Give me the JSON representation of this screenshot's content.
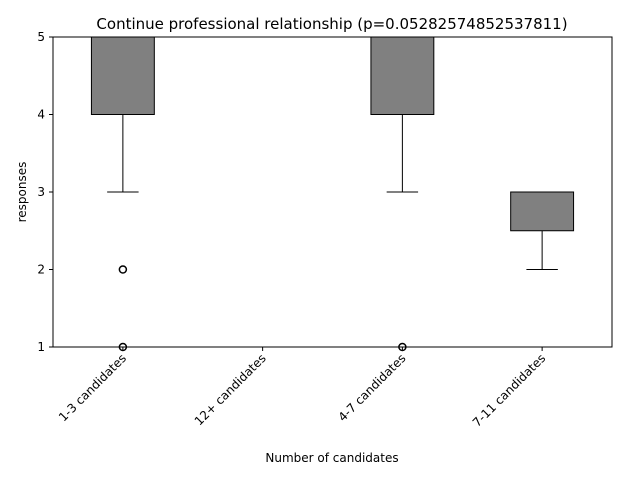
{
  "chart_data": {
    "type": "box",
    "title": "Continue professional relationship (p=0.05282574852537811)",
    "xlabel": "Number of candidates",
    "ylabel": "responses",
    "ylim": [
      1,
      5
    ],
    "yticks": [
      "1",
      "2",
      "3",
      "4",
      "5"
    ],
    "grid": false,
    "colors": {
      "box_fill": "#808080",
      "line": "#000000"
    },
    "categories": [
      "1-3 candidates",
      "12+ candidates",
      "4-7 candidates",
      "7-11 candidates"
    ],
    "boxes": [
      {
        "category": "1-3 candidates",
        "whisker_low": 3,
        "q1": 4,
        "median": 5,
        "q3": 5,
        "whisker_high": 5,
        "outliers": [
          2,
          1
        ]
      },
      {
        "category": "12+ candidates",
        "whisker_low": 5,
        "q1": 5,
        "median": 5,
        "q3": 5,
        "whisker_high": 5,
        "outliers": []
      },
      {
        "category": "4-7 candidates",
        "whisker_low": 3,
        "q1": 4,
        "median": 5,
        "q3": 5,
        "whisker_high": 5,
        "outliers": [
          1
        ]
      },
      {
        "category": "7-11 candidates",
        "whisker_low": 2,
        "q1": 2.5,
        "median": 3,
        "q3": 3,
        "whisker_high": 3,
        "outliers": []
      }
    ]
  }
}
